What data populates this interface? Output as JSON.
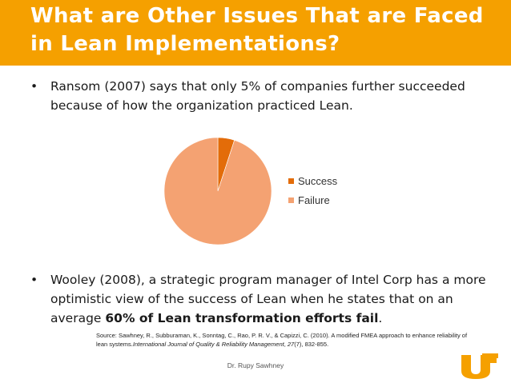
{
  "slide": {
    "title": "What are Other Issues That are Faced in Lean Implementations?",
    "bullet_symbol": "•",
    "bullet1": "Ransom (2007) says that only 5% of companies further succeeded because of how the organization practiced Lean.",
    "bullet2_prefix": "Wooley (2008), a strategic program manager of Intel Corp has a more optimistic view of the success of Lean when he states that on an average ",
    "bullet2_bold": "60% of Lean transformation efforts fail",
    "bullet2_suffix": ".",
    "source_label": "Source: ",
    "source_authors": "Sawhney, R., Subburaman, K., Sonntag, C., Rao, P. R. V., & Capizzi, C. (2010). A modified FMEA approach to enhance reliability of lean systems.",
    "source_journal": "International Journal of Quality & Reliability Management",
    "source_mid": ", ",
    "source_volume": "27",
    "source_end": "(7), 832-855.",
    "footer": "Dr. Rupy Sawhney",
    "logo_text": "UT"
  },
  "colors": {
    "title_bar": "#f5a000",
    "success": "#e36c09",
    "failure": "#f4a272"
  },
  "chart_data": {
    "type": "pie",
    "categories": [
      "Success",
      "Failure"
    ],
    "values": [
      5,
      95
    ],
    "legend_position": "right"
  }
}
